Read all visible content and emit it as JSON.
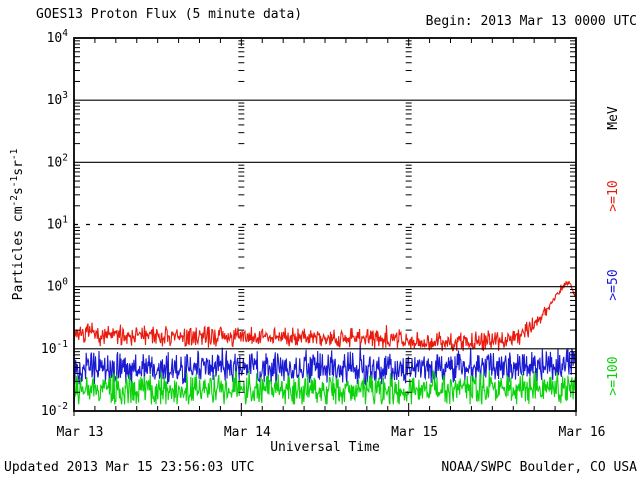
{
  "header": {
    "title": "GOES13 Proton Flux (5 minute data)",
    "begin_label": "Begin: 2013 Mar 13 0000 UTC"
  },
  "footer": {
    "updated": "Updated 2013 Mar 15 23:56:03 UTC",
    "source": "NOAA/SWPC Boulder, CO USA"
  },
  "colors": {
    "red": "#ea1a0e",
    "blue": "#1a1ad2",
    "green": "#0bd30b",
    "axis": "#000000",
    "background": "#ffffff"
  },
  "chart_data": {
    "type": "line",
    "title": "GOES13 Proton Flux (5 minute data)",
    "subtitle": "Begin: 2013 Mar 13 0000 UTC",
    "xlabel": "Universal Time",
    "ylabel": "Particles cm-2 s-1 sr-1",
    "ylabel_parts": [
      {
        "t": "Particles cm",
        "sup": false
      },
      {
        "t": "-2",
        "sup": true
      },
      {
        "t": "s",
        "sup": false
      },
      {
        "t": "-1",
        "sup": true
      },
      {
        "t": "sr",
        "sup": false
      },
      {
        "t": "-1",
        "sup": true
      }
    ],
    "y_scale": "log",
    "y_log_range": [
      -2,
      4
    ],
    "y_tick_exponents": [
      4,
      3,
      2,
      1,
      0,
      -1,
      -2
    ],
    "y_gridlines": [
      {
        "value": 1000,
        "style": "solid"
      },
      {
        "value": 100,
        "style": "solid"
      },
      {
        "value": 10,
        "style": "dashed"
      },
      {
        "value": 1,
        "style": "solid"
      },
      {
        "value": 0.1,
        "style": "solid"
      }
    ],
    "x_range_hours": [
      0,
      72
    ],
    "x_minor_tick_hours": 3,
    "x_tick_labels": [
      {
        "hour": 0,
        "label": "Mar 13"
      },
      {
        "hour": 24,
        "label": "Mar 14"
      },
      {
        "hour": 48,
        "label": "Mar 15"
      },
      {
        "hour": 72,
        "label": "Mar 16"
      }
    ],
    "day_boundary_tick_columns_hours": [
      24,
      48
    ],
    "legend_right": [
      {
        "label": "MeV",
        "color_key": "axis"
      },
      {
        "label": ">=10",
        "color_key": "red"
      },
      {
        "label": ">=50",
        "color_key": "blue"
      },
      {
        "label": ">=100",
        "color_key": "green"
      }
    ],
    "sample_interval_minutes": 5,
    "series": [
      {
        "name": ">=10 MeV",
        "legend": ">=10",
        "color_key": "red",
        "n_points": 864,
        "seed": 7,
        "noise_dex": 0.19,
        "spike_chance": 0.04,
        "spike_dex": 0.18,
        "floor": 0.092,
        "trend_hour_value": [
          [
            0,
            0.18
          ],
          [
            4,
            0.16
          ],
          [
            8,
            0.17
          ],
          [
            14,
            0.15
          ],
          [
            20,
            0.16
          ],
          [
            26,
            0.15
          ],
          [
            32,
            0.16
          ],
          [
            38,
            0.15
          ],
          [
            44,
            0.15
          ],
          [
            50,
            0.135
          ],
          [
            55,
            0.125
          ],
          [
            58,
            0.13
          ],
          [
            61,
            0.14
          ],
          [
            63,
            0.16
          ],
          [
            65,
            0.2
          ],
          [
            66.5,
            0.28
          ],
          [
            68,
            0.45
          ],
          [
            69.5,
            0.8
          ],
          [
            70.5,
            1.1
          ],
          [
            71.2,
            1.12
          ],
          [
            71.6,
            0.8
          ],
          [
            71.8,
            0.72
          ],
          [
            72,
            1.0
          ]
        ]
      },
      {
        "name": ">=50 MeV",
        "legend": ">=50",
        "color_key": "blue",
        "n_points": 864,
        "seed": 13,
        "noise_dex": 0.3,
        "spike_chance": 0.03,
        "spike_dex": 0.18,
        "floor": 0.027,
        "trend_hour_value": [
          [
            0,
            0.05
          ],
          [
            12,
            0.048
          ],
          [
            24,
            0.05
          ],
          [
            36,
            0.05
          ],
          [
            48,
            0.048
          ],
          [
            60,
            0.05
          ],
          [
            66,
            0.052
          ],
          [
            69,
            0.055
          ],
          [
            71,
            0.06
          ],
          [
            72,
            0.08
          ]
        ]
      },
      {
        "name": ">=100 MeV",
        "legend": ">=100",
        "color_key": "green",
        "n_points": 864,
        "seed": 29,
        "noise_dex": 0.32,
        "spike_chance": 0.02,
        "spike_dex": 0.15,
        "floor": 0.0128,
        "trend_hour_value": [
          [
            0,
            0.022
          ],
          [
            12,
            0.021
          ],
          [
            24,
            0.022
          ],
          [
            36,
            0.022
          ],
          [
            48,
            0.021
          ],
          [
            60,
            0.022
          ],
          [
            68,
            0.022
          ],
          [
            72,
            0.024
          ]
        ]
      }
    ]
  }
}
